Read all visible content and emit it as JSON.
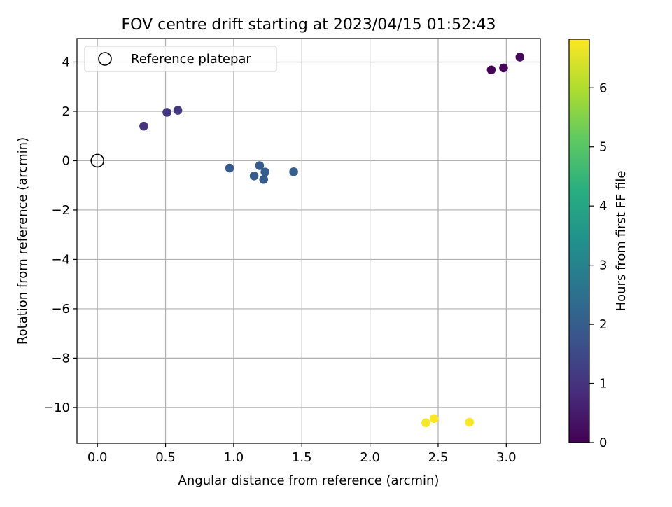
{
  "chart_data": {
    "type": "scatter",
    "title": "FOV centre drift starting at 2023/04/15 01:52:43",
    "xlabel": "Angular distance from reference (arcmin)",
    "ylabel": "Rotation from reference (arcmin)",
    "xlim": [
      -0.15,
      3.25
    ],
    "ylim": [
      -11.45,
      4.95
    ],
    "xticks": [
      0.0,
      0.5,
      1.0,
      1.5,
      2.0,
      2.5,
      3.0
    ],
    "xtick_labels": [
      "0.0",
      "0.5",
      "1.0",
      "1.5",
      "2.0",
      "2.5",
      "3.0"
    ],
    "yticks": [
      4,
      2,
      0,
      -2,
      -4,
      -6,
      -8,
      -10
    ],
    "ytick_labels": [
      "4",
      "2",
      "0",
      "−2",
      "−4",
      "−6",
      "−8",
      "−10"
    ],
    "grid": true,
    "legend": {
      "placement": "top-left",
      "entries": [
        "Reference platepar"
      ]
    },
    "reference_point": {
      "x": 0.0,
      "y": 0.0
    },
    "colormap": "viridis",
    "colorbar": {
      "label": "Hours from first FF file",
      "range": [
        0,
        6.82
      ],
      "ticks": [
        0,
        1,
        2,
        3,
        4,
        5,
        6
      ],
      "tick_labels": [
        "0",
        "1",
        "2",
        "3",
        "4",
        "5",
        "6"
      ]
    },
    "points": [
      {
        "x": 2.89,
        "y": 3.68,
        "hours": 0.05
      },
      {
        "x": 2.98,
        "y": 3.76,
        "hours": 0.1
      },
      {
        "x": 3.1,
        "y": 4.2,
        "hours": 0.15
      },
      {
        "x": 0.34,
        "y": 1.4,
        "hours": 1.0
      },
      {
        "x": 0.51,
        "y": 1.96,
        "hours": 1.05
      },
      {
        "x": 0.59,
        "y": 2.04,
        "hours": 1.1
      },
      {
        "x": 0.97,
        "y": -0.3,
        "hours": 1.9
      },
      {
        "x": 1.15,
        "y": -0.62,
        "hours": 1.95
      },
      {
        "x": 1.19,
        "y": -0.2,
        "hours": 1.95
      },
      {
        "x": 1.22,
        "y": -0.76,
        "hours": 2.0
      },
      {
        "x": 1.23,
        "y": -0.46,
        "hours": 2.0
      },
      {
        "x": 1.44,
        "y": -0.45,
        "hours": 2.05
      },
      {
        "x": 2.41,
        "y": -10.62,
        "hours": 6.75
      },
      {
        "x": 2.47,
        "y": -10.45,
        "hours": 6.8
      },
      {
        "x": 2.73,
        "y": -10.6,
        "hours": 6.82
      }
    ]
  }
}
